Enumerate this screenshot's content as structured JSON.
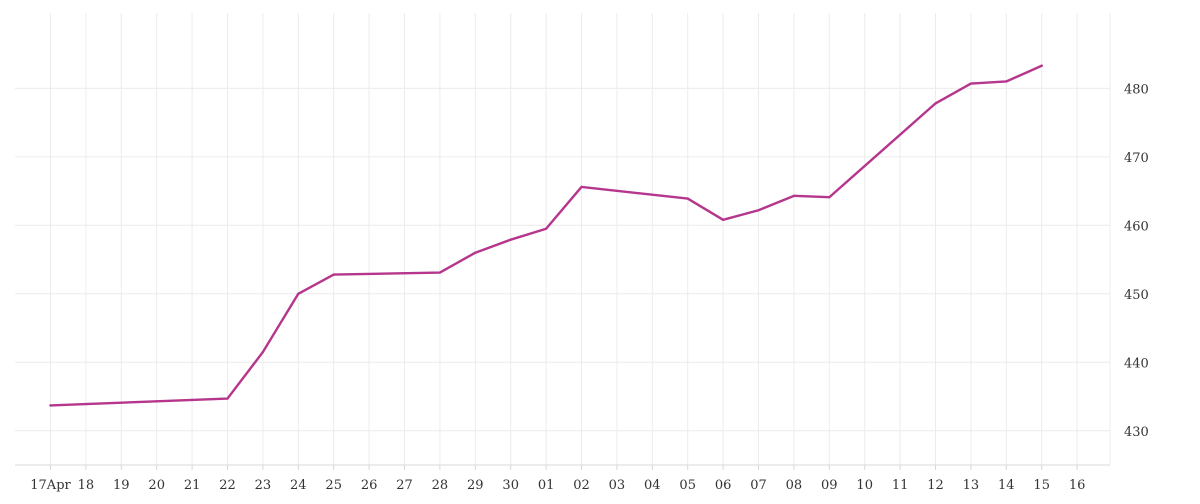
{
  "chart_data": {
    "type": "line",
    "title": "",
    "xlabel": "",
    "ylabel": "",
    "x_tick_labels": [
      "17Apr",
      "18",
      "19",
      "20",
      "21",
      "22",
      "23",
      "24",
      "25",
      "26",
      "27",
      "28",
      "29",
      "30",
      "01",
      "02",
      "03",
      "04",
      "05",
      "06",
      "07",
      "08",
      "09",
      "10",
      "11",
      "12",
      "13",
      "14",
      "15",
      "16"
    ],
    "y_ticks": [
      430,
      440,
      450,
      460,
      470,
      480
    ],
    "ylim": [
      425,
      491
    ],
    "grid": true,
    "legend": "none",
    "colors": {
      "line": "#b5368c",
      "grid": "#ececec",
      "axis": "#d9d9d9"
    },
    "series": [
      {
        "points": [
          {
            "x": "2024-04-17",
            "y": 433.7
          },
          {
            "x": "2024-04-18",
            "y": 433.9
          },
          {
            "x": "2024-04-19",
            "y": 434.1
          },
          {
            "x": "2024-04-20",
            "y": 434.3
          },
          {
            "x": "2024-04-21",
            "y": 434.5
          },
          {
            "x": "2024-04-22",
            "y": 434.7
          },
          {
            "x": "2024-04-23",
            "y": 441.5
          },
          {
            "x": "2024-04-24",
            "y": 450.0
          },
          {
            "x": "2024-04-25",
            "y": 452.8
          },
          {
            "x": "2024-04-28",
            "y": 453.1
          },
          {
            "x": "2024-04-29",
            "y": 456.0
          },
          {
            "x": "2024-04-30",
            "y": 457.9
          },
          {
            "x": "2024-05-01",
            "y": 459.5
          },
          {
            "x": "2024-05-02",
            "y": 465.6
          },
          {
            "x": "2024-05-05",
            "y": 463.9
          },
          {
            "x": "2024-05-06",
            "y": 460.8
          },
          {
            "x": "2024-05-07",
            "y": 462.2
          },
          {
            "x": "2024-05-08",
            "y": 464.3
          },
          {
            "x": "2024-05-09",
            "y": 464.1
          },
          {
            "x": "2024-05-12",
            "y": 477.8
          },
          {
            "x": "2024-05-13",
            "y": 480.7
          },
          {
            "x": "2024-05-14",
            "y": 481.0
          },
          {
            "x": "2024-05-15",
            "y": 483.3
          }
        ]
      }
    ]
  }
}
